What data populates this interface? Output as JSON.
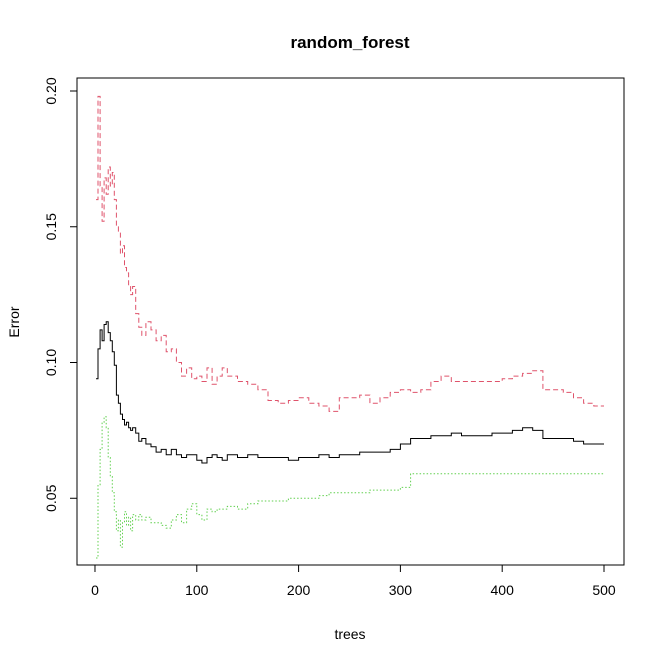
{
  "chart_data": {
    "type": "line",
    "title": "random_forest",
    "xlabel": "trees",
    "ylabel": "Error",
    "xlim": [
      1,
      500
    ],
    "ylim": [
      0.028,
      0.2
    ],
    "x_ticks": [
      0,
      100,
      200,
      300,
      400,
      500
    ],
    "y_ticks": [
      0.05,
      0.1,
      0.15,
      0.2
    ],
    "x_tick_labels": [
      "0",
      "100",
      "200",
      "300",
      "400",
      "500"
    ],
    "y_tick_labels": [
      "0.05",
      "0.10",
      "0.15",
      "0.20"
    ],
    "grid": false,
    "legend": "none",
    "series": [
      {
        "color": "#000000",
        "dash": "solid",
        "points": [
          [
            1,
            0.094
          ],
          [
            3,
            0.105
          ],
          [
            5,
            0.112
          ],
          [
            7,
            0.108
          ],
          [
            9,
            0.114
          ],
          [
            11,
            0.115
          ],
          [
            13,
            0.111
          ],
          [
            15,
            0.108
          ],
          [
            17,
            0.104
          ],
          [
            19,
            0.099
          ],
          [
            21,
            0.088
          ],
          [
            23,
            0.085
          ],
          [
            25,
            0.081
          ],
          [
            27,
            0.079
          ],
          [
            29,
            0.077
          ],
          [
            31,
            0.078
          ],
          [
            33,
            0.076
          ],
          [
            35,
            0.075
          ],
          [
            37,
            0.076
          ],
          [
            40,
            0.074
          ],
          [
            43,
            0.071
          ],
          [
            46,
            0.072
          ],
          [
            50,
            0.07
          ],
          [
            55,
            0.069
          ],
          [
            60,
            0.067
          ],
          [
            65,
            0.068
          ],
          [
            70,
            0.066
          ],
          [
            75,
            0.068
          ],
          [
            80,
            0.066
          ],
          [
            85,
            0.065
          ],
          [
            90,
            0.066
          ],
          [
            95,
            0.066
          ],
          [
            100,
            0.064
          ],
          [
            105,
            0.063
          ],
          [
            110,
            0.065
          ],
          [
            115,
            0.066
          ],
          [
            120,
            0.065
          ],
          [
            125,
            0.064
          ],
          [
            130,
            0.066
          ],
          [
            140,
            0.065
          ],
          [
            150,
            0.066
          ],
          [
            160,
            0.065
          ],
          [
            170,
            0.065
          ],
          [
            180,
            0.065
          ],
          [
            190,
            0.064
          ],
          [
            200,
            0.065
          ],
          [
            210,
            0.065
          ],
          [
            220,
            0.066
          ],
          [
            230,
            0.065
          ],
          [
            240,
            0.066
          ],
          [
            250,
            0.066
          ],
          [
            260,
            0.067
          ],
          [
            270,
            0.067
          ],
          [
            280,
            0.067
          ],
          [
            290,
            0.068
          ],
          [
            300,
            0.07
          ],
          [
            310,
            0.072
          ],
          [
            320,
            0.072
          ],
          [
            330,
            0.073
          ],
          [
            340,
            0.073
          ],
          [
            350,
            0.074
          ],
          [
            360,
            0.073
          ],
          [
            370,
            0.073
          ],
          [
            380,
            0.073
          ],
          [
            390,
            0.074
          ],
          [
            400,
            0.074
          ],
          [
            410,
            0.075
          ],
          [
            420,
            0.076
          ],
          [
            430,
            0.075
          ],
          [
            440,
            0.072
          ],
          [
            450,
            0.072
          ],
          [
            460,
            0.072
          ],
          [
            470,
            0.071
          ],
          [
            480,
            0.07
          ],
          [
            490,
            0.07
          ],
          [
            500,
            0.07
          ]
        ]
      },
      {
        "color": "#DF536B",
        "dash": "dashed",
        "points": [
          [
            1,
            0.16
          ],
          [
            3,
            0.198
          ],
          [
            5,
            0.165
          ],
          [
            7,
            0.152
          ],
          [
            9,
            0.168
          ],
          [
            11,
            0.162
          ],
          [
            13,
            0.172
          ],
          [
            15,
            0.165
          ],
          [
            17,
            0.17
          ],
          [
            19,
            0.16
          ],
          [
            21,
            0.15
          ],
          [
            23,
            0.148
          ],
          [
            25,
            0.14
          ],
          [
            27,
            0.143
          ],
          [
            29,
            0.135
          ],
          [
            31,
            0.133
          ],
          [
            33,
            0.128
          ],
          [
            35,
            0.125
          ],
          [
            37,
            0.128
          ],
          [
            40,
            0.118
          ],
          [
            43,
            0.113
          ],
          [
            46,
            0.11
          ],
          [
            50,
            0.115
          ],
          [
            55,
            0.112
          ],
          [
            60,
            0.108
          ],
          [
            65,
            0.11
          ],
          [
            70,
            0.104
          ],
          [
            75,
            0.105
          ],
          [
            80,
            0.1
          ],
          [
            85,
            0.095
          ],
          [
            90,
            0.098
          ],
          [
            95,
            0.094
          ],
          [
            100,
            0.095
          ],
          [
            105,
            0.093
          ],
          [
            110,
            0.098
          ],
          [
            115,
            0.092
          ],
          [
            120,
            0.095
          ],
          [
            125,
            0.098
          ],
          [
            130,
            0.095
          ],
          [
            140,
            0.093
          ],
          [
            150,
            0.092
          ],
          [
            160,
            0.09
          ],
          [
            170,
            0.086
          ],
          [
            180,
            0.085
          ],
          [
            190,
            0.086
          ],
          [
            200,
            0.087
          ],
          [
            210,
            0.085
          ],
          [
            220,
            0.084
          ],
          [
            230,
            0.082
          ],
          [
            240,
            0.087
          ],
          [
            250,
            0.087
          ],
          [
            260,
            0.088
          ],
          [
            270,
            0.085
          ],
          [
            280,
            0.087
          ],
          [
            290,
            0.089
          ],
          [
            300,
            0.09
          ],
          [
            310,
            0.089
          ],
          [
            320,
            0.09
          ],
          [
            330,
            0.093
          ],
          [
            340,
            0.095
          ],
          [
            350,
            0.093
          ],
          [
            360,
            0.093
          ],
          [
            370,
            0.093
          ],
          [
            380,
            0.093
          ],
          [
            390,
            0.093
          ],
          [
            400,
            0.094
          ],
          [
            410,
            0.095
          ],
          [
            420,
            0.096
          ],
          [
            430,
            0.097
          ],
          [
            440,
            0.09
          ],
          [
            450,
            0.09
          ],
          [
            460,
            0.089
          ],
          [
            470,
            0.087
          ],
          [
            480,
            0.085
          ],
          [
            490,
            0.084
          ],
          [
            500,
            0.084
          ]
        ]
      },
      {
        "color": "#61D04F",
        "dash": "dotted",
        "points": [
          [
            1,
            0.028
          ],
          [
            3,
            0.055
          ],
          [
            5,
            0.068
          ],
          [
            7,
            0.078
          ],
          [
            9,
            0.08
          ],
          [
            11,
            0.076
          ],
          [
            13,
            0.065
          ],
          [
            15,
            0.058
          ],
          [
            17,
            0.052
          ],
          [
            19,
            0.045
          ],
          [
            21,
            0.038
          ],
          [
            23,
            0.042
          ],
          [
            25,
            0.032
          ],
          [
            27,
            0.041
          ],
          [
            29,
            0.045
          ],
          [
            31,
            0.04
          ],
          [
            33,
            0.043
          ],
          [
            35,
            0.038
          ],
          [
            37,
            0.044
          ],
          [
            40,
            0.042
          ],
          [
            43,
            0.044
          ],
          [
            46,
            0.042
          ],
          [
            50,
            0.043
          ],
          [
            55,
            0.041
          ],
          [
            60,
            0.041
          ],
          [
            65,
            0.04
          ],
          [
            70,
            0.039
          ],
          [
            75,
            0.042
          ],
          [
            80,
            0.044
          ],
          [
            85,
            0.041
          ],
          [
            90,
            0.046
          ],
          [
            95,
            0.048
          ],
          [
            100,
            0.044
          ],
          [
            105,
            0.042
          ],
          [
            110,
            0.046
          ],
          [
            115,
            0.045
          ],
          [
            120,
            0.046
          ],
          [
            125,
            0.046
          ],
          [
            130,
            0.047
          ],
          [
            140,
            0.046
          ],
          [
            150,
            0.048
          ],
          [
            160,
            0.049
          ],
          [
            170,
            0.049
          ],
          [
            180,
            0.049
          ],
          [
            190,
            0.05
          ],
          [
            200,
            0.05
          ],
          [
            210,
            0.05
          ],
          [
            220,
            0.051
          ],
          [
            230,
            0.052
          ],
          [
            240,
            0.052
          ],
          [
            250,
            0.052
          ],
          [
            260,
            0.052
          ],
          [
            270,
            0.053
          ],
          [
            280,
            0.053
          ],
          [
            290,
            0.053
          ],
          [
            300,
            0.054
          ],
          [
            310,
            0.059
          ],
          [
            320,
            0.059
          ],
          [
            340,
            0.059
          ],
          [
            360,
            0.059
          ],
          [
            380,
            0.059
          ],
          [
            400,
            0.059
          ],
          [
            420,
            0.059
          ],
          [
            440,
            0.059
          ],
          [
            460,
            0.059
          ],
          [
            480,
            0.059
          ],
          [
            500,
            0.059
          ]
        ]
      }
    ]
  }
}
